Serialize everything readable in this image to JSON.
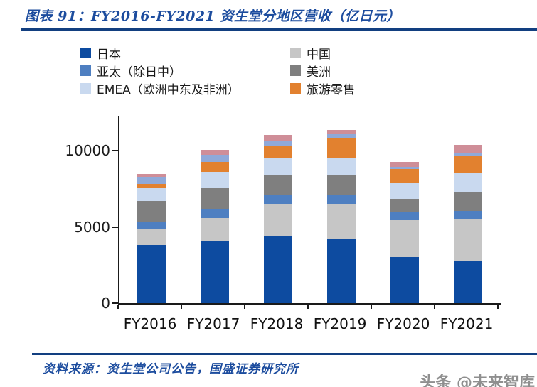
{
  "header": {
    "title": "图表 91：FY2016-FY2021 资生堂分地区营收（亿日元）"
  },
  "legend": {
    "column1_series_indexes": [
      0,
      2,
      4
    ],
    "column2_series_indexes": [
      1,
      3,
      5
    ]
  },
  "chart_data": {
    "type": "bar",
    "stacked": true,
    "title": "FY2016-FY2021 资生堂分地区营收（亿日元）",
    "categories": [
      "FY2016",
      "FY2017",
      "FY2018",
      "FY2019",
      "FY2020",
      "FY2021"
    ],
    "series": [
      {
        "name": "日本",
        "color": "#0d4ba0",
        "values": [
          3800,
          4050,
          4420,
          4190,
          3020,
          2740
        ]
      },
      {
        "name": "中国",
        "color": "#c6c6c6",
        "values": [
          1070,
          1530,
          2090,
          2330,
          2420,
          2790
        ]
      },
      {
        "name": "亚太（除日中）",
        "color": "#4e7fc1",
        "values": [
          470,
          560,
          560,
          560,
          560,
          510
        ]
      },
      {
        "name": "美洲",
        "color": "#7f7f7f",
        "values": [
          1350,
          1400,
          1300,
          1300,
          840,
          1260
        ]
      },
      {
        "name": "EMEA（欧洲中东及非洲）",
        "color": "#c9d9ef",
        "values": [
          840,
          1070,
          1160,
          1160,
          1020,
          1210
        ]
      },
      {
        "name": "旅游零售",
        "color": "#e2812f",
        "values": [
          280,
          650,
          790,
          1300,
          930,
          1120
        ]
      },
      {
        "name": "unlabeled_1",
        "color": "#8fa9d9",
        "values": [
          470,
          470,
          330,
          230,
          140,
          190
        ]
      },
      {
        "name": "unlabeled_2",
        "color": "#cf8e98",
        "values": [
          190,
          330,
          370,
          280,
          330,
          560
        ]
      }
    ],
    "totals_estimate": [
      8470,
      10060,
      11020,
      11350,
      9260,
      10380
    ],
    "xlabel": "",
    "ylabel": "",
    "yticks": [
      0,
      5000,
      10000
    ],
    "ylim": [
      0,
      12200
    ],
    "grid": false,
    "legend_position": "top"
  },
  "footer": {
    "source": "资料来源：资生堂公司公告，国盛证券研究所",
    "watermark": "头条 @未来智库"
  }
}
